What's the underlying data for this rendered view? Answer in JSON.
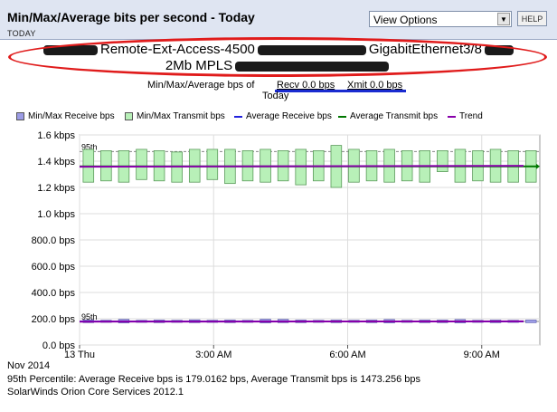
{
  "header": {
    "title": "Min/Max/Average bits per second - Today",
    "subtitle": "TODAY",
    "view_options": "View Options",
    "help": "HELP"
  },
  "node": {
    "part1": "Remote-Ext-Access-4500",
    "part2": "GigabitEthernet3/8",
    "part3": "2Mb MPLS"
  },
  "caption": {
    "prefix": "Min/Max/Average bps of",
    "recv": "Recv 0.0 bps",
    "xmit": "Xmit 0.0 bps",
    "period": "Today"
  },
  "legend": [
    {
      "label": "Min/Max Receive bps",
      "kind": "box",
      "color": "#9c9ce6"
    },
    {
      "label": "Min/Max Transmit bps",
      "kind": "box",
      "color": "#b8f0b8"
    },
    {
      "label": "Average Receive bps",
      "kind": "line",
      "color": "#2222dd"
    },
    {
      "label": "Average Transmit bps",
      "kind": "line",
      "color": "#007700"
    },
    {
      "label": "Trend",
      "kind": "line",
      "color": "#8800aa"
    }
  ],
  "chart_data": {
    "type": "line",
    "ylim": [
      0,
      1600
    ],
    "yticks": [
      0,
      200,
      400,
      600,
      800,
      1000,
      1200,
      1400,
      1600
    ],
    "ytick_labels": [
      "0.0 bps",
      "200.0 bps",
      "400.0 bps",
      "600.0 bps",
      "800.0 bps",
      "1.0 kbps",
      "1.2 kbps",
      "1.4 kbps",
      "1.6 kbps"
    ],
    "x_hours": [
      0,
      10.3
    ],
    "xticks": [
      0,
      3,
      6,
      9
    ],
    "xtick_labels": [
      "13 Thu",
      "3:00 AM",
      "6:00 AM",
      "9:00 AM"
    ],
    "percentile_label": "95th",
    "percentile_lines": [
      1473.256,
      179.0162
    ],
    "transmit_minmax": [
      [
        1240,
        1490
      ],
      [
        1250,
        1480
      ],
      [
        1240,
        1480
      ],
      [
        1260,
        1490
      ],
      [
        1250,
        1480
      ],
      [
        1240,
        1470
      ],
      [
        1240,
        1490
      ],
      [
        1260,
        1490
      ],
      [
        1230,
        1490
      ],
      [
        1250,
        1480
      ],
      [
        1240,
        1490
      ],
      [
        1250,
        1480
      ],
      [
        1220,
        1490
      ],
      [
        1250,
        1480
      ],
      [
        1200,
        1520
      ],
      [
        1240,
        1490
      ],
      [
        1250,
        1480
      ],
      [
        1240,
        1490
      ],
      [
        1250,
        1480
      ],
      [
        1240,
        1480
      ],
      [
        1320,
        1480
      ],
      [
        1240,
        1490
      ],
      [
        1250,
        1480
      ],
      [
        1240,
        1490
      ],
      [
        1240,
        1480
      ],
      [
        1240,
        1480
      ]
    ],
    "receive_minmax": [
      [
        170,
        190
      ],
      [
        172,
        188
      ],
      [
        168,
        195
      ],
      [
        172,
        188
      ],
      [
        170,
        190
      ],
      [
        172,
        188
      ],
      [
        170,
        192
      ],
      [
        172,
        188
      ],
      [
        170,
        190
      ],
      [
        172,
        188
      ],
      [
        168,
        196
      ],
      [
        170,
        195
      ],
      [
        170,
        190
      ],
      [
        172,
        188
      ],
      [
        170,
        190
      ],
      [
        172,
        188
      ],
      [
        170,
        190
      ],
      [
        168,
        194
      ],
      [
        172,
        188
      ],
      [
        170,
        190
      ],
      [
        170,
        190
      ],
      [
        168,
        194
      ],
      [
        172,
        188
      ],
      [
        170,
        190
      ],
      [
        172,
        188
      ],
      [
        170,
        190
      ]
    ],
    "avg_transmit": 1360,
    "avg_receive": 179,
    "trend_transmit": [
      1358,
      1365
    ],
    "trend_receive": [
      178,
      180
    ]
  },
  "footer": {
    "date_suffix": "Nov 2014",
    "percentile_text": "95th Percentile: Average Receive bps is 179.0162 bps, Average Transmit bps is 1473.256 bps",
    "product": "SolarWinds Orion Core Services 2012.1"
  }
}
